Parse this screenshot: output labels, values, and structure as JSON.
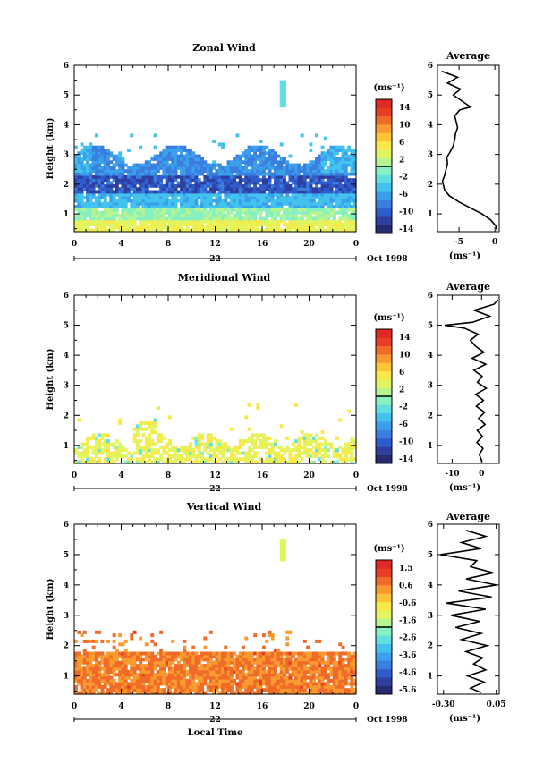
{
  "chart_data": [
    {
      "type": "heatmap",
      "title": "Zonal Wind",
      "ylabel": "Height (km)",
      "x_ticks": [
        "0",
        "4",
        "8",
        "12",
        "16",
        "20",
        "0"
      ],
      "y_ticks": [
        "1",
        "2",
        "3",
        "4",
        "5",
        "6"
      ],
      "xlim": [
        0,
        24
      ],
      "ylim": [
        0.4,
        6
      ],
      "date_label": "22",
      "month_label": "Oct 1998",
      "colorbar": {
        "unit": "(ms⁻¹)",
        "tick_labels": [
          "14",
          "10",
          "6",
          "2",
          "-2",
          "-6",
          "-10",
          "-14"
        ],
        "range": [
          -16,
          16
        ],
        "colors": [
          "#262a6e",
          "#2f3fa0",
          "#2e5ccc",
          "#3a7fe0",
          "#3aa0ec",
          "#43c2ee",
          "#5fdfe0",
          "#86f0c0",
          "#b6f590",
          "#e0f560",
          "#f8e848",
          "#fcc438",
          "#f89a30",
          "#f06a28",
          "#e83e26",
          "#e02824"
        ]
      },
      "average": {
        "title": "Average",
        "x_ticks": [
          "-5",
          "0"
        ],
        "unit": "(ms⁻¹)",
        "xlim": [
          -8,
          0.6
        ],
        "height": [
          0.45,
          0.6,
          0.8,
          1.0,
          1.2,
          1.4,
          1.6,
          1.8,
          2.0,
          2.1,
          2.3,
          2.5,
          2.7,
          2.9,
          3.1,
          3.3,
          3.5,
          3.7,
          3.9,
          4.1,
          4.3,
          4.5,
          4.6,
          4.8,
          5.0,
          5.2,
          5.4,
          5.6,
          5.8
        ],
        "value": [
          0.3,
          0.1,
          -0.6,
          -1.8,
          -3.4,
          -5.0,
          -6.3,
          -7.0,
          -7.2,
          -7.3,
          -7.0,
          -6.8,
          -6.6,
          -6.7,
          -6.2,
          -5.8,
          -5.6,
          -5.5,
          -5.2,
          -5.4,
          -5.6,
          -4.9,
          -3.4,
          -4.6,
          -5.8,
          -4.8,
          -6.6,
          -5.2,
          -7.4
        ]
      }
    },
    {
      "type": "heatmap",
      "title": "Meridional Wind",
      "ylabel": "Height (km)",
      "x_ticks": [
        "0",
        "4",
        "8",
        "12",
        "16",
        "20",
        "0"
      ],
      "y_ticks": [
        "1",
        "2",
        "3",
        "4",
        "5",
        "6"
      ],
      "xlim": [
        0,
        24
      ],
      "ylim": [
        0.4,
        6
      ],
      "date_label": "22",
      "month_label": "Oct 1998",
      "colorbar": {
        "unit": "(ms⁻¹)",
        "tick_labels": [
          "14",
          "10",
          "6",
          "2",
          "-2",
          "-6",
          "-10",
          "-14"
        ],
        "range": [
          -16,
          16
        ],
        "colors": [
          "#262a6e",
          "#2f3fa0",
          "#2e5ccc",
          "#3a7fe0",
          "#3aa0ec",
          "#43c2ee",
          "#5fdfe0",
          "#86f0c0",
          "#b6f590",
          "#e0f560",
          "#f8e848",
          "#fcc438",
          "#f89a30",
          "#f06a28",
          "#e83e26",
          "#e02824"
        ]
      },
      "average": {
        "title": "Average",
        "x_ticks": [
          "-10",
          "0"
        ],
        "unit": "(ms⁻¹)",
        "xlim": [
          -15,
          6
        ],
        "height": [
          0.45,
          0.7,
          0.9,
          1.1,
          1.3,
          1.5,
          1.7,
          1.9,
          2.1,
          2.3,
          2.5,
          2.7,
          2.9,
          3.1,
          3.3,
          3.5,
          3.7,
          3.9,
          4.1,
          4.3,
          4.5,
          4.7,
          4.9,
          5.0,
          5.1,
          5.3,
          5.5,
          5.7,
          5.85
        ],
        "value": [
          0.2,
          -0.8,
          0.5,
          -1.6,
          0.3,
          -1.5,
          1.2,
          -1.0,
          1.0,
          -1.8,
          0.6,
          -2.0,
          1.6,
          -1.4,
          0.2,
          -2.6,
          1.4,
          -3.2,
          0.8,
          -2.0,
          -3.8,
          -1.2,
          -5.8,
          -12.5,
          -3.0,
          2.8,
          -2.5,
          4.2,
          5.6
        ]
      }
    },
    {
      "type": "heatmap",
      "title": "Vertical Wind",
      "ylabel": "Height (km)",
      "xlabel": "Local Time",
      "x_ticks": [
        "0",
        "4",
        "8",
        "12",
        "16",
        "20",
        "0"
      ],
      "y_ticks": [
        "1",
        "2",
        "3",
        "4",
        "5",
        "6"
      ],
      "xlim": [
        0,
        24
      ],
      "ylim": [
        0.4,
        6
      ],
      "date_label": "22",
      "month_label": "Oct 1998",
      "colorbar": {
        "unit": "(ms⁻¹)",
        "tick_labels": [
          "1.5",
          "0.6",
          "-0.6",
          "-1.6",
          "-2.6",
          "-3.6",
          "-4.6",
          "-5.6"
        ],
        "range": [
          -6.1,
          2.0
        ],
        "colors": [
          "#262a6e",
          "#2f3fa0",
          "#2e5ccc",
          "#3a7fe0",
          "#3aa0ec",
          "#43c2ee",
          "#5fdfe0",
          "#86f0c0",
          "#b6f590",
          "#e0f560",
          "#f8e848",
          "#fcc438",
          "#f89a30",
          "#f06a28",
          "#e83e26",
          "#e02824"
        ]
      },
      "average": {
        "title": "Average",
        "x_ticks": [
          "-0.30",
          "0.05"
        ],
        "unit": "(ms⁻¹)",
        "xlim": [
          -0.34,
          0.07
        ],
        "height": [
          0.45,
          0.6,
          0.8,
          1.0,
          1.2,
          1.4,
          1.6,
          1.8,
          2.0,
          2.2,
          2.4,
          2.6,
          2.8,
          3.0,
          3.2,
          3.4,
          3.6,
          3.8,
          4.0,
          4.2,
          4.4,
          4.6,
          4.8,
          5.0,
          5.2,
          5.4,
          5.6,
          5.8
        ],
        "value": [
          -0.05,
          -0.12,
          -0.03,
          -0.14,
          -0.02,
          -0.1,
          -0.04,
          -0.15,
          -0.01,
          -0.18,
          -0.05,
          -0.22,
          -0.06,
          -0.25,
          -0.02,
          -0.28,
          0.02,
          -0.2,
          0.05,
          -0.15,
          0.03,
          -0.12,
          -0.08,
          -0.32,
          -0.05,
          -0.18,
          -0.02,
          -0.15
        ]
      }
    }
  ]
}
